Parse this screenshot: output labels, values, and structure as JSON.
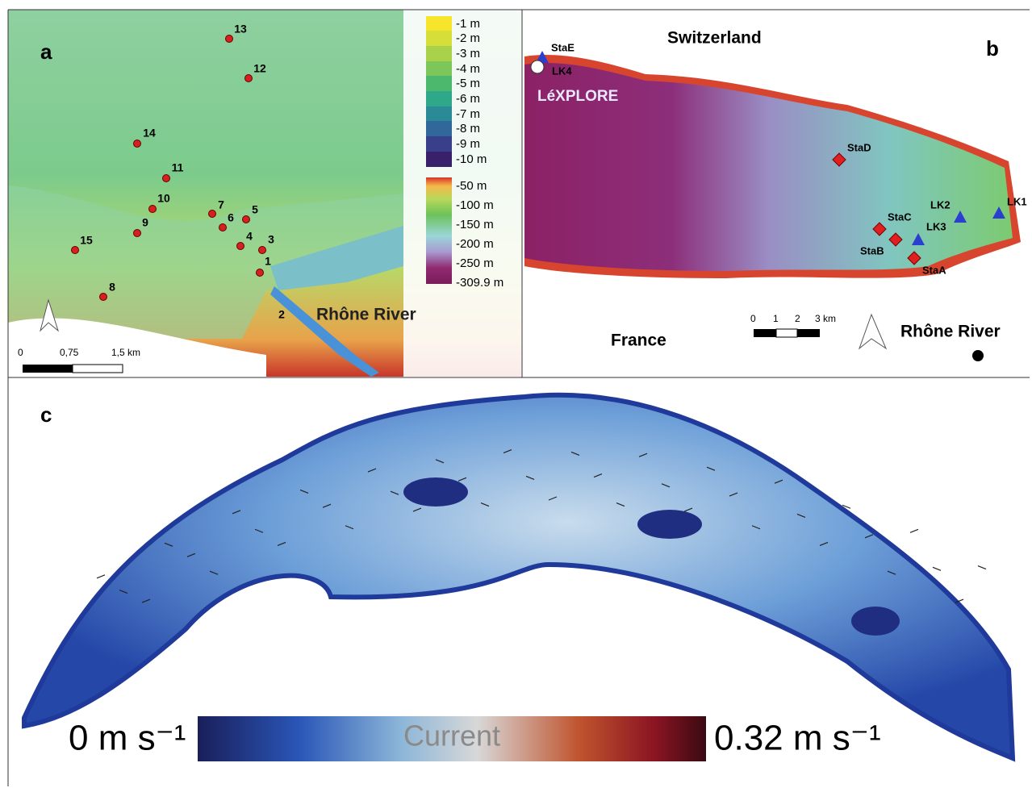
{
  "panel_a": {
    "label": "a",
    "points": [
      "1",
      "2",
      "3",
      "4",
      "5",
      "6",
      "7",
      "8",
      "9",
      "10",
      "11",
      "12",
      "13",
      "14",
      "15"
    ],
    "legend": [
      "-1 m",
      "-2 m",
      "-3 m",
      "-4 m",
      "-5 m",
      "-6 m",
      "-7 m",
      "-8 m",
      "-9 m",
      "-10 m",
      "-50 m",
      "-100 m",
      "-150 m",
      "-200 m",
      "-250 m",
      "-309.9 m"
    ],
    "river": "Rhône River",
    "scale": [
      "0",
      "0,75",
      "1,5 km"
    ]
  },
  "panel_b": {
    "label": "b",
    "countries": [
      "Switzerland",
      "France"
    ],
    "platform": "LéXPLORE",
    "stations": [
      "StaE",
      "LK4",
      "StaD",
      "StaC",
      "StaB",
      "StaA",
      "LK2",
      "LK3",
      "LK1"
    ],
    "river": "Rhône River",
    "scale": [
      "0",
      "1",
      "2",
      "3 km"
    ]
  },
  "panel_c": {
    "label": "c",
    "colorbar": {
      "min": "0 m s⁻¹",
      "title": "Current",
      "max": "0.32 m s⁻¹"
    }
  }
}
